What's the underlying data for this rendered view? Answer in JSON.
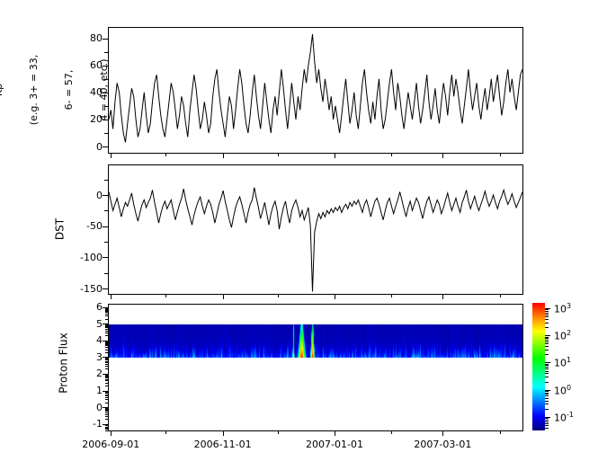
{
  "figure": {
    "background": "#ffffff",
    "series_color": "#000000"
  },
  "xaxis": {
    "major_labels": [
      "2006-09-01",
      "2006-11-01",
      "2007-01-01",
      "2007-03-01"
    ],
    "major_fracs": [
      0.0071,
      0.2763,
      0.5455,
      0.806
    ],
    "minor_fracs": [
      0.1396,
      0.4089,
      0.6825,
      0.9428
    ]
  },
  "colorbar": {
    "base": "10",
    "exponent_labels": [
      3,
      2,
      1,
      0,
      -1
    ],
    "scale_log10_range": [
      -1.5,
      3.2
    ],
    "colormap": "jet"
  },
  "chart_data": [
    {
      "type": "line",
      "id": "kp",
      "ylabel_lines": [
        "Kp",
        "(e.g. 3+ = 33,",
        "6- = 57,",
        "4 = 40, etc.)"
      ],
      "yticks": [
        0,
        20,
        40,
        60,
        80
      ],
      "yminor": [
        10,
        30,
        50,
        70
      ],
      "ylim": [
        -5.3,
        88.5
      ],
      "x_range": [
        "2006-08-30",
        "2007-04-14"
      ],
      "values": [
        20,
        27,
        13,
        33,
        47,
        40,
        23,
        10,
        3,
        17,
        30,
        43,
        37,
        20,
        7,
        13,
        27,
        40,
        23,
        10,
        17,
        33,
        47,
        53,
        37,
        23,
        13,
        7,
        20,
        33,
        47,
        40,
        27,
        13,
        23,
        37,
        30,
        17,
        7,
        27,
        40,
        53,
        43,
        27,
        13,
        20,
        33,
        23,
        10,
        17,
        37,
        50,
        57,
        40,
        27,
        17,
        7,
        23,
        37,
        30,
        13,
        27,
        43,
        57,
        47,
        30,
        17,
        10,
        23,
        40,
        53,
        37,
        23,
        13,
        30,
        47,
        33,
        20,
        10,
        27,
        37,
        23,
        40,
        57,
        43,
        27,
        13,
        30,
        47,
        33,
        20,
        37,
        27,
        43,
        57,
        47,
        60,
        70,
        83,
        63,
        47,
        57,
        43,
        33,
        50,
        40,
        27,
        37,
        20,
        30,
        20,
        10,
        23,
        37,
        50,
        33,
        17,
        27,
        40,
        23,
        13,
        30,
        47,
        57,
        40,
        27,
        17,
        33,
        20,
        37,
        50,
        27,
        13,
        20,
        33,
        47,
        57,
        40,
        27,
        47,
        37,
        23,
        13,
        27,
        40,
        30,
        20,
        33,
        47,
        30,
        17,
        27,
        40,
        53,
        33,
        20,
        30,
        43,
        27,
        17,
        33,
        47,
        37,
        23,
        40,
        53,
        37,
        50,
        40,
        27,
        17,
        30,
        43,
        57,
        40,
        27,
        37,
        47,
        30,
        20,
        33,
        43,
        27,
        37,
        50,
        33,
        43,
        53,
        37,
        23,
        33,
        47,
        57,
        40,
        50,
        37,
        27,
        40,
        53,
        57
      ]
    },
    {
      "type": "line",
      "id": "dst",
      "ylabel": "DST",
      "yticks": [
        0,
        -50,
        -100,
        -150
      ],
      "yminor": [
        25,
        -25,
        -75,
        -125
      ],
      "ylim": [
        -160.5,
        48.5
      ],
      "x_range": [
        "2006-08-30",
        "2007-04-14"
      ],
      "values": [
        5,
        -10,
        -25,
        -15,
        -5,
        -20,
        -35,
        -22,
        -12,
        -18,
        -8,
        3,
        -15,
        -30,
        -42,
        -28,
        -15,
        -8,
        -20,
        -12,
        -5,
        8,
        -12,
        -28,
        -45,
        -30,
        -18,
        -10,
        -22,
        -15,
        -8,
        -25,
        -40,
        -27,
        -15,
        -5,
        10,
        -8,
        -22,
        -35,
        -48,
        -32,
        -20,
        -10,
        -3,
        -18,
        -30,
        -18,
        -8,
        -15,
        -28,
        -45,
        -30,
        -15,
        -5,
        7,
        -10,
        -25,
        -40,
        -52,
        -35,
        -20,
        -10,
        -3,
        -15,
        -30,
        -45,
        -28,
        -15,
        -8,
        12,
        -5,
        -20,
        -38,
        -25,
        -12,
        -30,
        -48,
        -30,
        -18,
        -10,
        -25,
        -55,
        -35,
        -20,
        -10,
        -30,
        -45,
        -25,
        -15,
        -8,
        -20,
        -35,
        -25,
        -40,
        -30,
        -20,
        -50,
        -155,
        -60,
        -42,
        -30,
        -38,
        -28,
        -35,
        -25,
        -30,
        -22,
        -28,
        -20,
        -25,
        -18,
        -28,
        -20,
        -15,
        -22,
        -12,
        -18,
        -10,
        -15,
        -8,
        -18,
        -28,
        -15,
        -8,
        -20,
        -35,
        -22,
        -10,
        -5,
        -15,
        -28,
        -40,
        -25,
        -12,
        -5,
        -18,
        -30,
        -18,
        -8,
        5,
        -8,
        -22,
        -35,
        -20,
        -10,
        -25,
        -15,
        -5,
        -12,
        -25,
        -38,
        -22,
        -10,
        -3,
        -15,
        -28,
        -18,
        -8,
        -15,
        -30,
        -20,
        -8,
        3,
        -12,
        -25,
        -15,
        -5,
        -18,
        -28,
        -12,
        -3,
        8,
        -10,
        -22,
        -12,
        -2,
        -15,
        -25,
        -15,
        -5,
        6,
        -8,
        -18,
        -10,
        0,
        -12,
        -22,
        -10,
        -2,
        8,
        -5,
        -15,
        -8,
        2,
        -10,
        -20,
        -12,
        -4,
        5
      ]
    },
    {
      "type": "heatmap",
      "id": "proton_flux",
      "ylabel": "Proton Flux",
      "yticks": [
        -1,
        0,
        1,
        2,
        3,
        4,
        5,
        6
      ],
      "ylim": [
        -1.45,
        6.2
      ],
      "band_y_range": [
        3,
        5
      ],
      "background_log10": -1.22,
      "color_scale_log10": [
        -1.5,
        3.2
      ],
      "x_range": [
        "2006-08-30",
        "2007-04-14"
      ],
      "events": [
        {
          "center_frac": 0.4455,
          "sigma_frac": 0.0025,
          "peak_log10": 2.3
        },
        {
          "center_frac": 0.4655,
          "sigma_frac": 0.009,
          "peak_log10": 3.1
        },
        {
          "center_frac": 0.4915,
          "sigma_frac": 0.005,
          "peak_log10": 3.15
        }
      ]
    }
  ]
}
